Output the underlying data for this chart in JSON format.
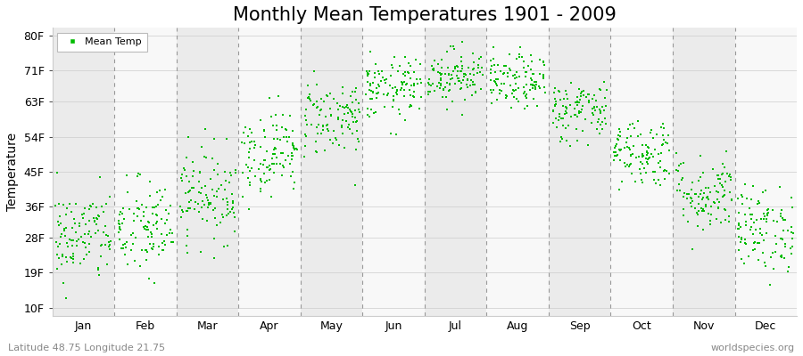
{
  "title": "Monthly Mean Temperatures 1901 - 2009",
  "ylabel": "Temperature",
  "xlabel_bottom_left": "Latitude 48.75 Longitude 21.75",
  "xlabel_bottom_right": "worldspecies.org",
  "legend_label": "Mean Temp",
  "yticks": [
    10,
    19,
    28,
    36,
    45,
    54,
    63,
    71,
    80
  ],
  "ytick_labels": [
    "10F",
    "19F",
    "28F",
    "36F",
    "45F",
    "54F",
    "63F",
    "71F",
    "80F"
  ],
  "ylim": [
    8,
    82
  ],
  "months": [
    "Jan",
    "Feb",
    "Mar",
    "Apr",
    "May",
    "Jun",
    "Jul",
    "Aug",
    "Sep",
    "Oct",
    "Nov",
    "Dec"
  ],
  "dot_color": "#00bb00",
  "bg_colors": [
    "#ebebeb",
    "#f8f8f8"
  ],
  "title_fontsize": 15,
  "axis_label_fontsize": 10,
  "tick_fontsize": 9,
  "legend_marker_color": "#00bb00",
  "n_years": 109,
  "seed": 42,
  "monthly_mean_temps_f": [
    28.4,
    30.2,
    39.2,
    50.0,
    59.0,
    66.2,
    69.8,
    68.0,
    60.8,
    50.0,
    39.2,
    30.2
  ],
  "monthly_std_f": [
    6.0,
    6.5,
    6.0,
    5.5,
    5.0,
    4.0,
    3.5,
    3.5,
    4.0,
    4.5,
    5.0,
    5.5
  ]
}
